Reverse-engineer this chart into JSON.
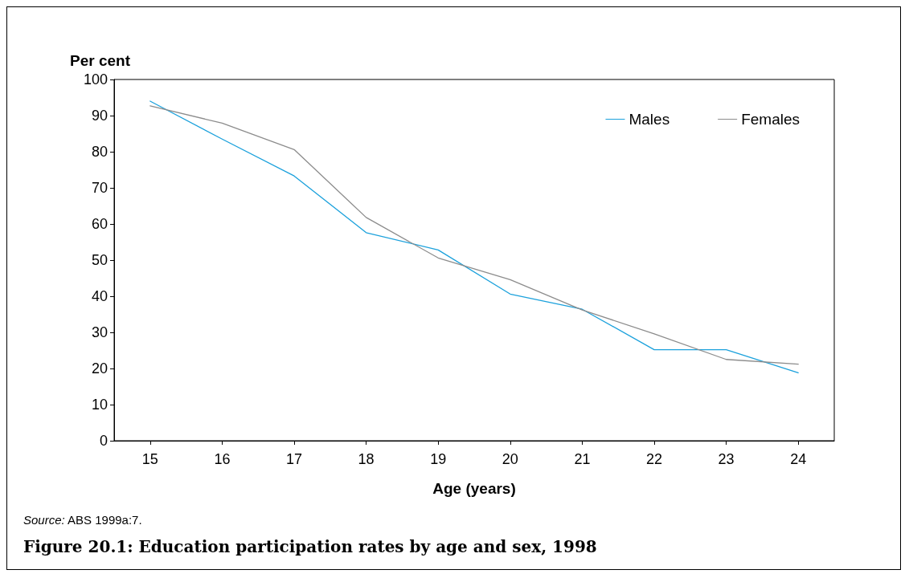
{
  "chart_data": {
    "type": "line",
    "title": "Figure 20.1: Education participation rates by age and sex, 1998",
    "ylabel": "Per cent",
    "xlabel": "Age (years)",
    "annotations": [
      "Source: ABS 1999a:7."
    ],
    "categories": [
      "15",
      "16",
      "17",
      "18",
      "19",
      "20",
      "21",
      "22",
      "23",
      "24"
    ],
    "series": [
      {
        "name": "Males",
        "color": "#1ba1dc",
        "values": [
          94,
          83.5,
          73.3,
          57.6,
          52.8,
          40.6,
          36.4,
          25.2,
          25.2,
          18.8
        ]
      },
      {
        "name": "Females",
        "color": "#8c8c8c",
        "values": [
          92.7,
          87.9,
          80.6,
          61.8,
          50.6,
          44.6,
          36.2,
          29.6,
          22.5,
          21.2
        ]
      }
    ],
    "ylim": [
      0,
      100
    ],
    "yticks": [
      0,
      10,
      20,
      30,
      40,
      50,
      60,
      70,
      80,
      90,
      100
    ],
    "grid": false,
    "legend": "top right",
    "marker": "none",
    "line_style": "solid"
  }
}
